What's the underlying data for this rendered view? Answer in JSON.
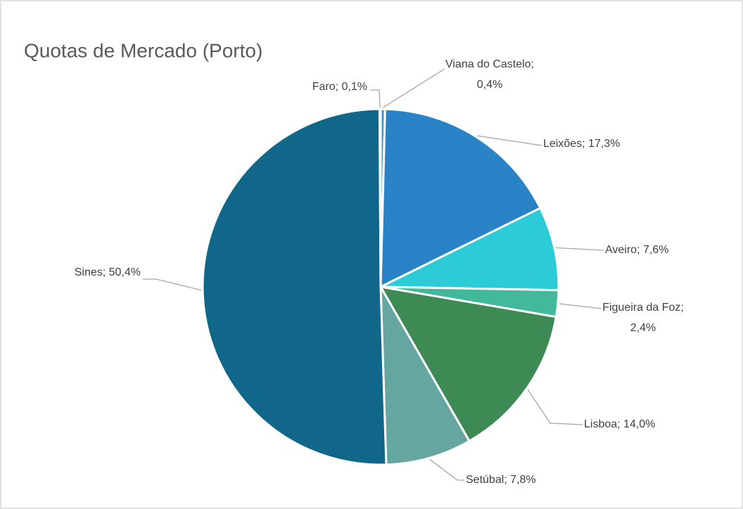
{
  "chart_data": {
    "type": "pie",
    "title": "Quotas de Mercado (Porto)",
    "values": [
      0.4,
      17.3,
      7.6,
      2.4,
      14.0,
      7.8,
      50.4,
      0.1
    ],
    "value_labels": [
      "Viana do Castelo; 0,4%",
      "Leixões; 17,3%",
      "Aveiro; 7,6%",
      "Figueira da Foz; 2,4%",
      "Lisboa; 14,0%",
      "Setúbal; 7,8%",
      "Sines; 50,4%",
      "Faro; 0,1%"
    ],
    "colors": [
      "#3a9ad6",
      "#2a83c7",
      "#2bcbd8",
      "#42b99a",
      "#3d8a55",
      "#65a6a1",
      "#106789",
      "#2b7fc0"
    ]
  }
}
